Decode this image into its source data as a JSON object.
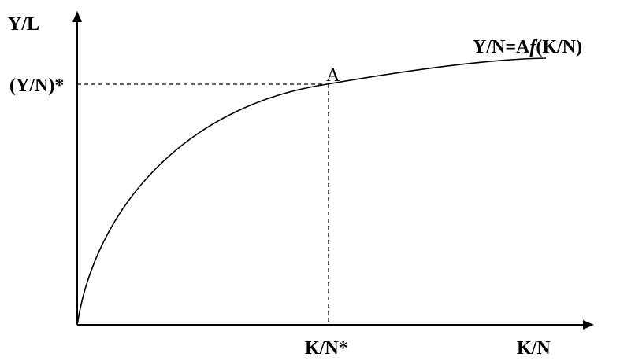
{
  "diagram": {
    "y_axis_label": "Y/L",
    "x_axis_label": "K/N",
    "curve_label": {
      "prefix": "Y/N=A",
      "function": "f",
      "suffix": "(K/N)"
    },
    "point_label": "A",
    "y_star_label": "(Y/N)*",
    "x_star_label": "K/N*"
  },
  "colors": {
    "ink": "#000000",
    "background": "#ffffff"
  }
}
